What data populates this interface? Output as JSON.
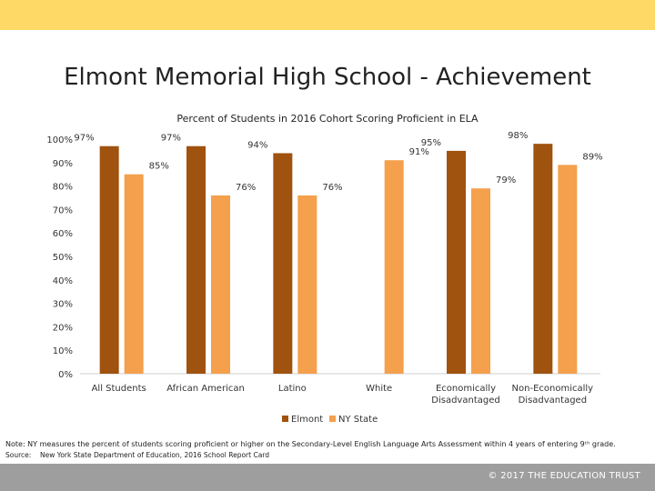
{
  "title": "Elmont Memorial High School - Achievement",
  "note": "Note: NY measures the percent of students scoring proficient or higher on the Secondary-Level English Language Arts Assessment within 4 years of entering 9ᵗʰ grade.",
  "source_label": "Source:",
  "source_text": "New York State Department of Education, 2016 School Report Card",
  "footer_text": "© 2017 THE EDUCATION TRUST",
  "colors": {
    "topbar": "#ffd966",
    "elmont": "#a0520f",
    "nystate": "#f4a04c",
    "footer": "#9e9e9e"
  },
  "chart_data": {
    "type": "bar",
    "title": "Percent of Students in 2016 Cohort Scoring Proficient in ELA",
    "categories": [
      [
        "All Students"
      ],
      [
        "African American"
      ],
      [
        "Latino"
      ],
      [
        "White"
      ],
      [
        "Economically",
        "Disadvantaged"
      ],
      [
        "Non-Economically",
        "Disadvantaged"
      ]
    ],
    "series": [
      {
        "name": "Elmont",
        "values": [
          97,
          97,
          94,
          null,
          95,
          98
        ],
        "labels": [
          "97%",
          "97%",
          "94%",
          "",
          "95%",
          "98%"
        ]
      },
      {
        "name": "NY State",
        "values": [
          85,
          76,
          76,
          91,
          79,
          89
        ],
        "labels": [
          "85%",
          "76%",
          "76%",
          "91%",
          "79%",
          "89%"
        ]
      }
    ],
    "y_ticks": [
      "0%",
      "10%",
      "20%",
      "30%",
      "40%",
      "50%",
      "60%",
      "70%",
      "80%",
      "90%",
      "100%"
    ],
    "ylim": [
      0,
      100
    ],
    "grid": false,
    "legend_position": "bottom"
  }
}
